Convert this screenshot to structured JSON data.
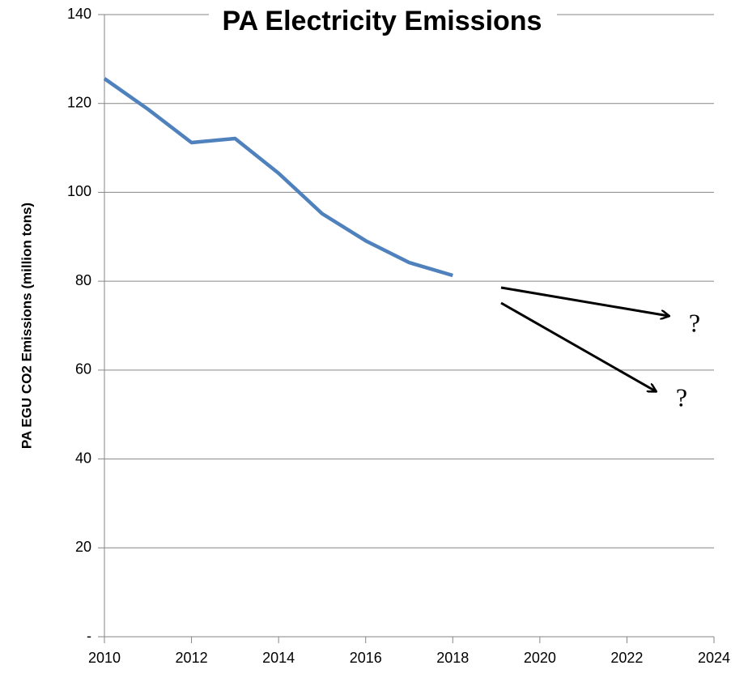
{
  "chart_data": {
    "type": "line",
    "title": "PA Electricity Emissions",
    "y_label": "PA EGU CO2 Emissions (million tons)",
    "x": [
      2010,
      2011,
      2012,
      2013,
      2014,
      2015,
      2016,
      2017,
      2018
    ],
    "values": [
      125.6,
      118.7,
      111.2,
      112.1,
      104.3,
      95.2,
      89.1,
      84.2,
      81.3
    ],
    "color": "#4f81bd",
    "xlim": [
      2010,
      2024
    ],
    "xticks": [
      2010,
      2012,
      2014,
      2016,
      2018,
      2020,
      2022,
      2024
    ],
    "ylim": [
      0,
      140
    ],
    "yticks": [
      {
        "value": 0,
        "label": "-"
      },
      20,
      40,
      60,
      80,
      100,
      120,
      140
    ],
    "grid": true,
    "annotations": [
      "?",
      "?"
    ]
  }
}
